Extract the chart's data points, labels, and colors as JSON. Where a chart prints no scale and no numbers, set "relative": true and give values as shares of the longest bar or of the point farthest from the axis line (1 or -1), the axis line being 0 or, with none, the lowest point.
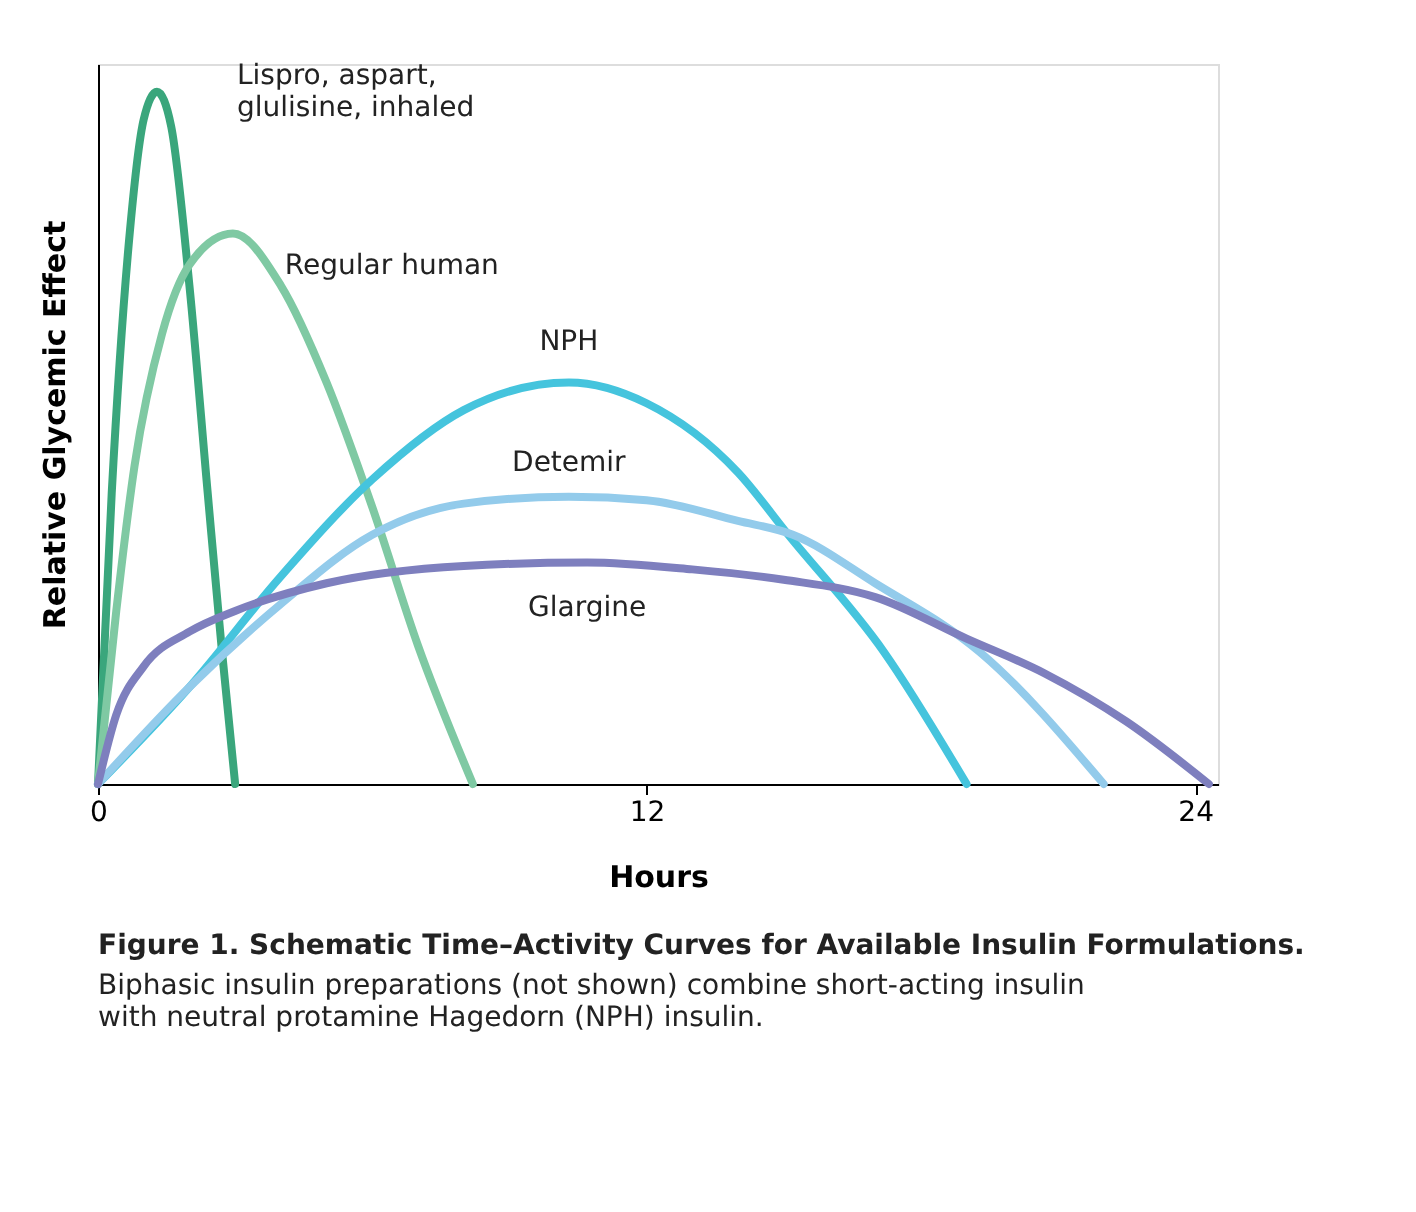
{
  "chart_data": {
    "type": "line",
    "relative": true,
    "title": "Figure 1. Schematic Time–Activity Curves for Available Insulin Formulations.",
    "annotations": [
      "Biphasic insulin preparations (not shown) combine short-acting insulin with neutral protamine Hagedorn (NPH) insulin."
    ],
    "xlabel": "Hours",
    "ylabel": "Relative Glycemic Effect",
    "xlim": [
      0,
      24.5
    ],
    "xticks": [
      0,
      12,
      24
    ],
    "grid": false,
    "legend": false,
    "marker": "none",
    "line_style": "solid",
    "series": [
      {
        "name": "Lispro, aspart,\nglulisine, inhaled",
        "color": "#3aa67c",
        "x": [
          0,
          0.3,
          0.7,
          1.0,
          1.29,
          1.6,
          2.0,
          2.4,
          2.7,
          3.0
        ],
        "values": [
          0,
          0.42,
          0.8,
          0.96,
          1,
          0.95,
          0.72,
          0.42,
          0.2,
          0
        ]
      },
      {
        "name": "Regular human",
        "color": "#7fc9a3",
        "x": [
          0,
          0.4,
          0.8,
          1.4,
          2.0,
          2.95,
          4,
          5,
          6,
          7,
          8.2
        ],
        "values": [
          0,
          0.25,
          0.46,
          0.65,
          0.75,
          0.795,
          0.72,
          0.58,
          0.4,
          0.2,
          0
        ]
      },
      {
        "name": "NPH",
        "color": "#45c4dd",
        "x": [
          0,
          2,
          4,
          6,
          8,
          10.3,
          12,
          14,
          15.1,
          17.2,
          19
        ],
        "values": [
          0,
          0.14,
          0.3,
          0.44,
          0.54,
          0.58,
          0.55,
          0.45,
          0.36,
          0.19,
          0
        ]
      },
      {
        "name": "Detemir",
        "color": "#93cbeb",
        "x": [
          0,
          2,
          4,
          6,
          8,
          10.3,
          12,
          14,
          15.2,
          17,
          19.3,
          22
        ],
        "values": [
          0,
          0.14,
          0.26,
          0.36,
          0.405,
          0.415,
          0.41,
          0.38,
          0.36,
          0.29,
          0.19,
          0
        ]
      },
      {
        "name": "Glargine",
        "color": "#7e7fbe",
        "x": [
          0,
          0.4,
          1,
          2,
          3,
          5,
          8,
          10.7,
          13,
          15,
          17,
          19,
          20.7,
          22.5,
          24.3
        ],
        "values": [
          0,
          0.1,
          0.17,
          0.22,
          0.25,
          0.29,
          0.315,
          0.32,
          0.31,
          0.295,
          0.27,
          0.21,
          0.16,
          0.09,
          0
        ]
      }
    ]
  }
}
